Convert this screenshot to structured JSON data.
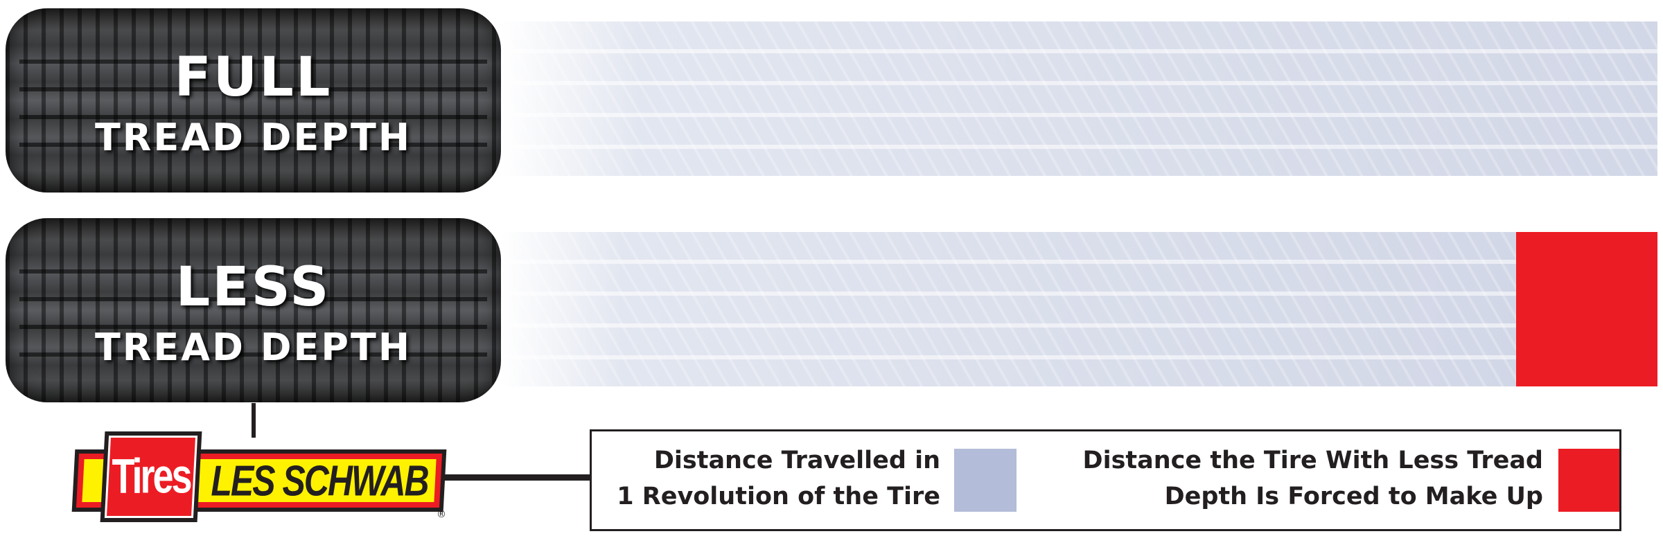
{
  "rows": [
    {
      "title": "FULL",
      "subtitle": "TREAD DEPTH"
    },
    {
      "title": "LESS",
      "subtitle": "TREAD DEPTH"
    }
  ],
  "logo": {
    "text_left": "Tires",
    "text_right": "LES SCHWAB",
    "mark": "®"
  },
  "legend": {
    "item1": {
      "line1": "Distance Travelled in",
      "line2": "1 Revolution of the Tire",
      "color": "#b3bcd8"
    },
    "item2": {
      "line1": "Distance the Tire With Less Tread",
      "line2": "Depth Is Forced to Make Up",
      "color": "#ec1c24"
    }
  }
}
